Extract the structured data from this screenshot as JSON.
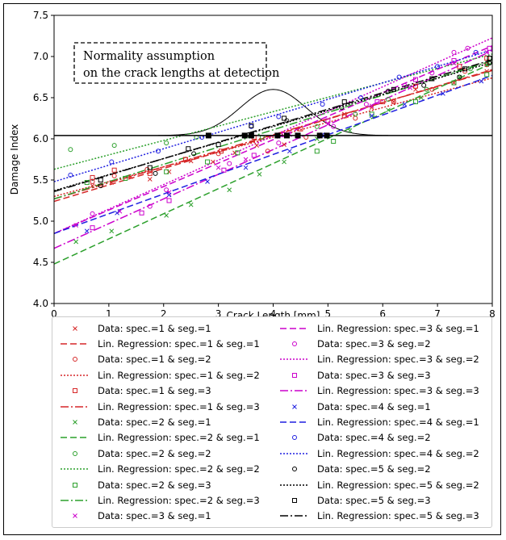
{
  "chart_data": {
    "type": "scatter",
    "xlabel": "Crack Length [mm]",
    "ylabel": "Damage Index",
    "xlim": [
      0,
      8
    ],
    "ylim": [
      4.0,
      7.5
    ],
    "xticks": [
      "0",
      "1",
      "2",
      "3",
      "4",
      "5",
      "6",
      "7",
      "8"
    ],
    "yticks": [
      "4.0",
      "4.5",
      "5.0",
      "5.5",
      "6.0",
      "6.5",
      "7.0",
      "7.5"
    ],
    "grid": false,
    "legend_position": "bottom",
    "annotation": {
      "line1": "Normality assumption",
      "line2": "on the crack lengths at detection"
    },
    "threshold": 6.04,
    "normal_curve": {
      "mean": 4.0,
      "sd": 0.6,
      "peak": 6.6
    },
    "detection_points_x": [
      2.82,
      3.48,
      3.6,
      4.08,
      4.25,
      4.45,
      4.85,
      4.98
    ],
    "series": [
      {
        "name": "Data: spec.=1 & seg.=1",
        "kind": "data",
        "marker": "x",
        "color": "#d62728",
        "points": [
          [
            0.7,
            5.43
          ],
          [
            1.05,
            5.47
          ],
          [
            1.4,
            5.54
          ],
          [
            1.75,
            5.51
          ],
          [
            2.1,
            5.6
          ],
          [
            2.5,
            5.73
          ],
          [
            2.9,
            5.72
          ],
          [
            3.3,
            5.83
          ],
          [
            3.7,
            5.92
          ],
          [
            4.2,
            5.93
          ],
          [
            5.3,
            6.3
          ],
          [
            5.8,
            6.38
          ],
          [
            6.2,
            6.45
          ],
          [
            6.6,
            6.6
          ],
          [
            7.3,
            6.68
          ],
          [
            7.9,
            6.82
          ]
        ]
      },
      {
        "name": "Lin. Regression: spec.=1 & seg.=1",
        "kind": "line",
        "dash": "8,4",
        "color": "#d62728",
        "intercept": 5.24,
        "slope": 0.2
      },
      {
        "name": "Data: spec.=1 & seg.=2",
        "kind": "data",
        "marker": "o",
        "color": "#d62728",
        "points": [
          [
            0.7,
            5.48
          ],
          [
            1.1,
            5.55
          ],
          [
            1.7,
            5.63
          ],
          [
            2.4,
            5.75
          ],
          [
            3.0,
            5.82
          ],
          [
            3.9,
            5.85
          ],
          [
            4.6,
            6.02
          ],
          [
            5.5,
            6.25
          ],
          [
            6.2,
            6.45
          ],
          [
            6.9,
            6.6
          ],
          [
            7.5,
            6.82
          ],
          [
            7.9,
            6.9
          ]
        ]
      },
      {
        "name": "Lin. Regression: spec.=1 & seg.=2",
        "kind": "line",
        "dash": "2,2",
        "color": "#d62728",
        "intercept": 5.3,
        "slope": 0.18
      },
      {
        "name": "Data: spec.=1 & seg.=3",
        "kind": "data",
        "marker": "s",
        "color": "#d62728",
        "points": [
          [
            0.7,
            5.53
          ],
          [
            1.1,
            5.62
          ],
          [
            1.75,
            5.58
          ],
          [
            2.4,
            5.75
          ],
          [
            3.05,
            5.85
          ],
          [
            3.65,
            6.02
          ],
          [
            4.5,
            6.12
          ],
          [
            5.3,
            6.28
          ],
          [
            6.0,
            6.45
          ],
          [
            6.6,
            6.64
          ],
          [
            7.4,
            6.88
          ],
          [
            7.9,
            6.98
          ]
        ]
      },
      {
        "name": "Lin. Regression: spec.=1 & seg.=3",
        "kind": "line",
        "dash": "10,3,2,3",
        "color": "#d62728",
        "intercept": 5.27,
        "slope": 0.195
      },
      {
        "name": "Data: spec.=2 & seg.=1",
        "kind": "data",
        "marker": "x",
        "color": "#2ca02c",
        "points": [
          [
            0.4,
            4.75
          ],
          [
            1.05,
            4.88
          ],
          [
            2.05,
            5.07
          ],
          [
            2.5,
            5.2
          ],
          [
            3.2,
            5.38
          ],
          [
            3.75,
            5.57
          ],
          [
            4.2,
            5.72
          ],
          [
            4.8,
            6.0
          ],
          [
            5.4,
            6.1
          ],
          [
            6.1,
            6.35
          ],
          [
            6.7,
            6.5
          ],
          [
            7.4,
            6.75
          ],
          [
            7.9,
            6.9
          ]
        ]
      },
      {
        "name": "Lin. Regression: spec.=2 & seg.=1",
        "kind": "line",
        "dash": "8,4",
        "color": "#2ca02c",
        "intercept": 4.48,
        "slope": 0.305
      },
      {
        "name": "Data: spec.=2 & seg.=2",
        "kind": "data",
        "marker": "o",
        "color": "#2ca02c",
        "points": [
          [
            0.3,
            5.87
          ],
          [
            1.1,
            5.92
          ],
          [
            2.05,
            5.95
          ],
          [
            2.6,
            6.02
          ],
          [
            3.8,
            6.02
          ],
          [
            4.8,
            6.15
          ],
          [
            5.5,
            6.3
          ],
          [
            6.1,
            6.48
          ],
          [
            6.8,
            6.6
          ],
          [
            7.6,
            6.85
          ],
          [
            7.95,
            6.98
          ]
        ]
      },
      {
        "name": "Lin. Regression: spec.=2 & seg.=2",
        "kind": "line",
        "dash": "2,2",
        "color": "#2ca02c",
        "intercept": 5.63,
        "slope": 0.175
      },
      {
        "name": "Data: spec.=2 & seg.=3",
        "kind": "data",
        "marker": "s",
        "color": "#2ca02c",
        "points": [
          [
            0.6,
            5.47
          ],
          [
            1.3,
            5.52
          ],
          [
            2.05,
            5.6
          ],
          [
            2.8,
            5.72
          ],
          [
            3.35,
            5.83
          ],
          [
            4.8,
            5.85
          ],
          [
            5.1,
            5.97
          ],
          [
            5.8,
            6.3
          ],
          [
            6.6,
            6.45
          ],
          [
            7.3,
            6.68
          ],
          [
            7.9,
            6.78
          ]
        ]
      },
      {
        "name": "Lin. Regression: spec.=2 & seg.=3",
        "kind": "line",
        "dash": "10,3,2,3",
        "color": "#2ca02c",
        "intercept": 5.27,
        "slope": 0.21
      },
      {
        "name": "Data: spec.=3 & seg.=1",
        "kind": "data",
        "marker": "x",
        "color": "#cc00cc",
        "points": [
          [
            0.4,
            4.95
          ],
          [
            1.2,
            5.12
          ],
          [
            2.1,
            5.35
          ],
          [
            3.0,
            5.65
          ],
          [
            3.5,
            5.75
          ],
          [
            4.3,
            6.05
          ],
          [
            5.0,
            6.18
          ],
          [
            5.8,
            6.4
          ],
          [
            6.5,
            6.62
          ],
          [
            7.3,
            6.92
          ],
          [
            7.9,
            7.05
          ]
        ]
      },
      {
        "name": "Lin. Regression: spec.=3 & seg.=1",
        "kind": "line",
        "dash": "8,4",
        "color": "#cc00cc",
        "intercept": 4.85,
        "slope": 0.285
      },
      {
        "name": "Data: spec.=3 & seg.=2",
        "kind": "data",
        "marker": "o",
        "color": "#cc00cc",
        "points": [
          [
            0.7,
            5.09
          ],
          [
            1.75,
            5.18
          ],
          [
            2.05,
            5.38
          ],
          [
            3.2,
            5.7
          ],
          [
            4.1,
            5.95
          ],
          [
            5.1,
            6.15
          ],
          [
            5.7,
            6.42
          ],
          [
            6.4,
            6.65
          ],
          [
            6.9,
            6.8
          ],
          [
            7.3,
            7.05
          ],
          [
            7.55,
            7.1
          ]
        ]
      },
      {
        "name": "Lin. Regression: spec.=3 & seg.=2",
        "kind": "line",
        "dash": "2,2",
        "color": "#cc00cc",
        "intercept": 4.85,
        "slope": 0.297
      },
      {
        "name": "Data: spec.=3 & seg.=3",
        "kind": "data",
        "marker": "s",
        "color": "#cc00cc",
        "points": [
          [
            0.7,
            4.92
          ],
          [
            1.6,
            5.1
          ],
          [
            2.1,
            5.25
          ],
          [
            3.1,
            5.62
          ],
          [
            3.65,
            5.8
          ],
          [
            4.2,
            6.05
          ],
          [
            5.0,
            6.22
          ],
          [
            5.9,
            6.45
          ],
          [
            6.6,
            6.72
          ],
          [
            7.3,
            6.95
          ],
          [
            7.95,
            7.1
          ]
        ]
      },
      {
        "name": "Lin. Regression: spec.=3 & seg.=3",
        "kind": "line",
        "dash": "10,3,2,3",
        "color": "#cc00cc",
        "intercept": 4.67,
        "slope": 0.3
      },
      {
        "name": "Data: spec.=4 & seg.=1",
        "kind": "data",
        "marker": "x",
        "color": "#1f1fe0",
        "points": [
          [
            0.6,
            4.88
          ],
          [
            1.15,
            5.1
          ],
          [
            2.1,
            5.32
          ],
          [
            2.8,
            5.48
          ],
          [
            3.5,
            5.65
          ],
          [
            4.3,
            5.85
          ],
          [
            4.9,
            6.05
          ],
          [
            5.8,
            6.28
          ],
          [
            6.4,
            6.42
          ],
          [
            7.1,
            6.55
          ],
          [
            7.8,
            6.7
          ]
        ]
      },
      {
        "name": "Lin. Regression: spec.=4 & seg.=1",
        "kind": "line",
        "dash": "8,4",
        "color": "#1f1fe0",
        "intercept": 4.85,
        "slope": 0.24
      },
      {
        "name": "Data: spec.=4 & seg.=2",
        "kind": "data",
        "marker": "o",
        "color": "#1f1fe0",
        "points": [
          [
            0.3,
            5.56
          ],
          [
            1.05,
            5.72
          ],
          [
            1.9,
            5.85
          ],
          [
            2.7,
            6.02
          ],
          [
            3.6,
            6.15
          ],
          [
            4.1,
            6.27
          ],
          [
            4.9,
            6.42
          ],
          [
            5.6,
            6.5
          ],
          [
            6.3,
            6.75
          ],
          [
            7.0,
            6.88
          ],
          [
            7.7,
            7.05
          ]
        ]
      },
      {
        "name": "Lin. Regression: spec.=4 & seg.=2",
        "kind": "line",
        "dash": "2,2",
        "color": "#1f1fe0",
        "intercept": 5.48,
        "slope": 0.2
      },
      {
        "name": "Data: spec.=5 & seg.=2",
        "kind": "data",
        "marker": "o",
        "color": "#000000",
        "points": [
          [
            0.85,
            5.43
          ],
          [
            1.85,
            5.58
          ],
          [
            2.55,
            5.82
          ],
          [
            3.55,
            6.05
          ],
          [
            4.25,
            6.22
          ],
          [
            5.25,
            6.38
          ],
          [
            6.1,
            6.58
          ],
          [
            6.75,
            6.65
          ],
          [
            7.4,
            6.75
          ],
          [
            7.95,
            6.92
          ]
        ]
      },
      {
        "name": "Lin. Regression: spec.=5 & seg.=2",
        "kind": "line",
        "dash": "2,2",
        "color": "#000000",
        "intercept": 5.37,
        "slope": 0.195
      },
      {
        "name": "Data: spec.=5 & seg.=3",
        "kind": "data",
        "marker": "s",
        "color": "#000000",
        "points": [
          [
            0.85,
            5.5
          ],
          [
            1.75,
            5.65
          ],
          [
            2.45,
            5.88
          ],
          [
            3.0,
            5.93
          ],
          [
            3.6,
            6.16
          ],
          [
            4.2,
            6.25
          ],
          [
            5.3,
            6.45
          ],
          [
            6.2,
            6.6
          ],
          [
            6.9,
            6.73
          ],
          [
            7.5,
            6.85
          ],
          [
            7.95,
            6.98
          ]
        ]
      },
      {
        "name": "Lin. Regression: spec.=5 & seg.=3",
        "kind": "line",
        "dash": "10,3,2,3",
        "color": "#000000",
        "intercept": 5.36,
        "slope": 0.2
      }
    ]
  }
}
